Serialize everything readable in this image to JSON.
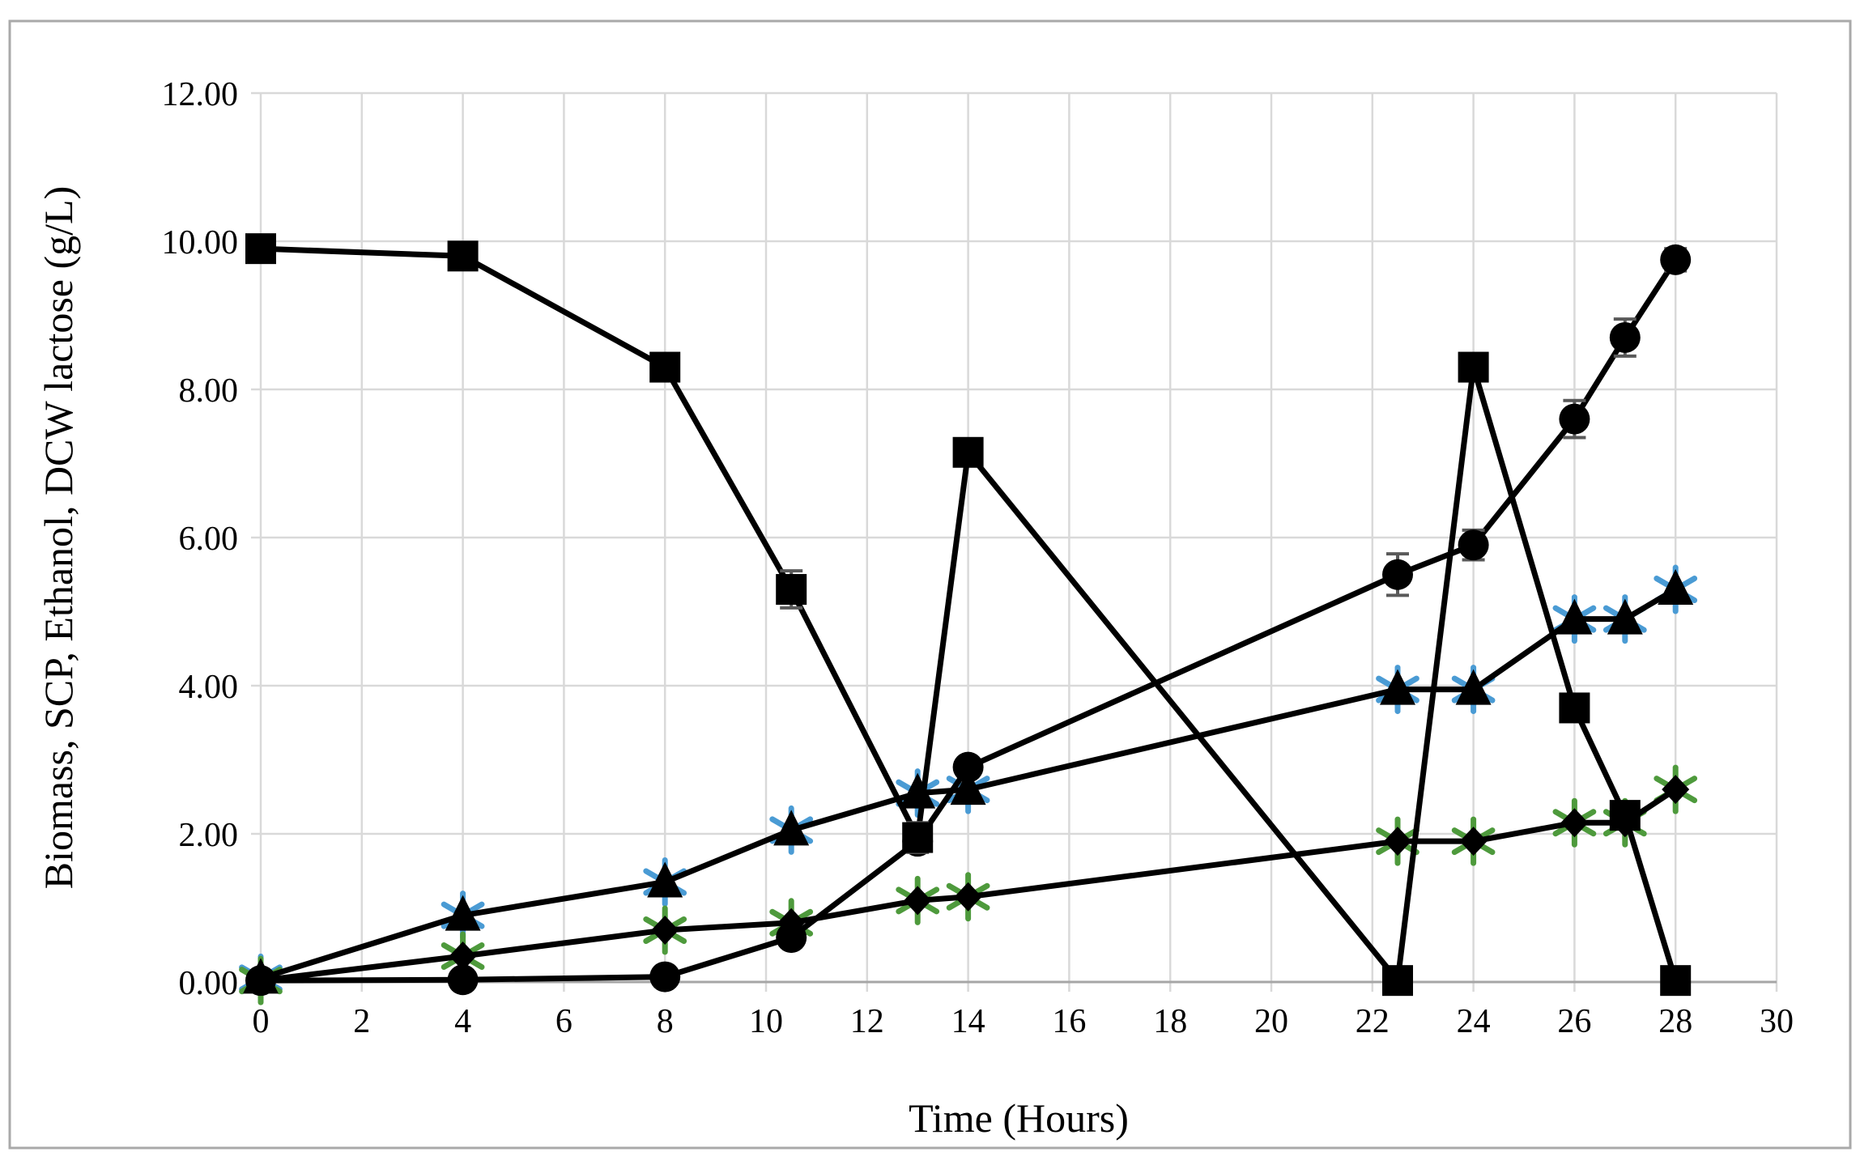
{
  "figure": {
    "background": "#ffffff",
    "border_color": "#a9a9a9"
  },
  "chart_data": {
    "type": "line",
    "title": "",
    "xlabel": "Time (Hours)",
    "ylabel": "Biomass, SCP, Ethanol, DCW lactose (g/L)",
    "xlim": [
      0,
      30
    ],
    "ylim": [
      0,
      12
    ],
    "x_ticks": [
      0,
      2,
      4,
      6,
      8,
      10,
      12,
      14,
      16,
      18,
      20,
      22,
      24,
      26,
      28,
      30
    ],
    "y_ticks": [
      0,
      2,
      4,
      6,
      8,
      10,
      12
    ],
    "y_tick_decimals": 2,
    "grid": true,
    "legend": false,
    "colors": {
      "grid": "#d9d9d9",
      "axis_line": "#a6a6a6",
      "error_bar": "#595959",
      "series_black": "#000000",
      "asterisk_blue": "#4a9bd4",
      "asterisk_green": "#4e9a3c"
    },
    "x": [
      0,
      4,
      8,
      10.5,
      13,
      14,
      22.5,
      24,
      26,
      27,
      28
    ],
    "series": [
      {
        "name": "blue-asterisk",
        "marker": "asterisk",
        "color": "#4a9bd4",
        "line": false,
        "y": [
          0.05,
          0.9,
          1.35,
          2.05,
          2.55,
          2.6,
          3.95,
          3.95,
          4.9,
          4.9,
          5.3
        ],
        "yerr": [
          0,
          0,
          0,
          0,
          0,
          0,
          0,
          0,
          0,
          0,
          0
        ]
      },
      {
        "name": "green-asterisk",
        "marker": "asterisk",
        "color": "#4e9a3c",
        "line": false,
        "y": [
          0.02,
          0.35,
          0.7,
          0.8,
          1.1,
          1.15,
          1.9,
          1.9,
          2.15,
          2.15,
          2.6
        ],
        "yerr": [
          0,
          0,
          0,
          0,
          0,
          0,
          0,
          0,
          0,
          0,
          0
        ]
      },
      {
        "name": "filled-circle",
        "marker": "circle",
        "color": "#000000",
        "line": true,
        "y": [
          0.02,
          0.03,
          0.07,
          0.6,
          1.9,
          2.9,
          5.5,
          5.9,
          7.6,
          8.7,
          9.75
        ],
        "yerr": [
          0,
          0,
          0,
          0,
          0,
          0.1,
          0.28,
          0.2,
          0.25,
          0.25,
          0.15
        ]
      },
      {
        "name": "filled-triangle",
        "marker": "triangle",
        "color": "#000000",
        "line": true,
        "y": [
          0.05,
          0.9,
          1.35,
          2.05,
          2.55,
          2.6,
          3.95,
          3.95,
          4.9,
          4.9,
          5.3
        ],
        "yerr": [
          0,
          0,
          0,
          0,
          0,
          0,
          0,
          0,
          0,
          0,
          0
        ]
      },
      {
        "name": "filled-diamond",
        "marker": "diamond",
        "color": "#000000",
        "line": true,
        "y": [
          0.02,
          0.35,
          0.7,
          0.8,
          1.1,
          1.15,
          1.9,
          1.9,
          2.15,
          2.15,
          2.6
        ],
        "yerr": [
          0,
          0,
          0,
          0,
          0,
          0,
          0,
          0,
          0,
          0,
          0
        ]
      },
      {
        "name": "filled-square",
        "marker": "square",
        "color": "#000000",
        "line": true,
        "y": [
          9.9,
          9.8,
          8.3,
          5.3,
          1.95,
          7.15,
          0.02,
          8.3,
          3.7,
          2.25,
          0.02
        ],
        "yerr": [
          0.05,
          0.05,
          0.1,
          0.25,
          0.2,
          0.12,
          0,
          0.12,
          0.05,
          0.05,
          0
        ]
      }
    ]
  }
}
